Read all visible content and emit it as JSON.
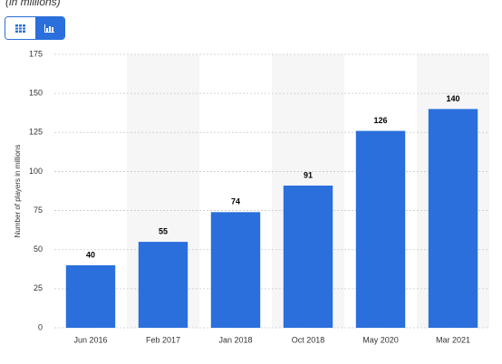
{
  "subtitle": "(in millions)",
  "chart_data": {
    "type": "bar",
    "y_label": "Number of players in millions",
    "categories": [
      "Jun 2016",
      "Feb 2017",
      "Jan 2018",
      "Oct 2018",
      "May 2020",
      "Mar 2021"
    ],
    "values": [
      40,
      55,
      74,
      91,
      126,
      140
    ],
    "color": "#2a6fdb",
    "ylim": [
      0,
      175
    ],
    "yticks": [
      0,
      25,
      50,
      75,
      100,
      125,
      150,
      175
    ],
    "grid": true
  }
}
